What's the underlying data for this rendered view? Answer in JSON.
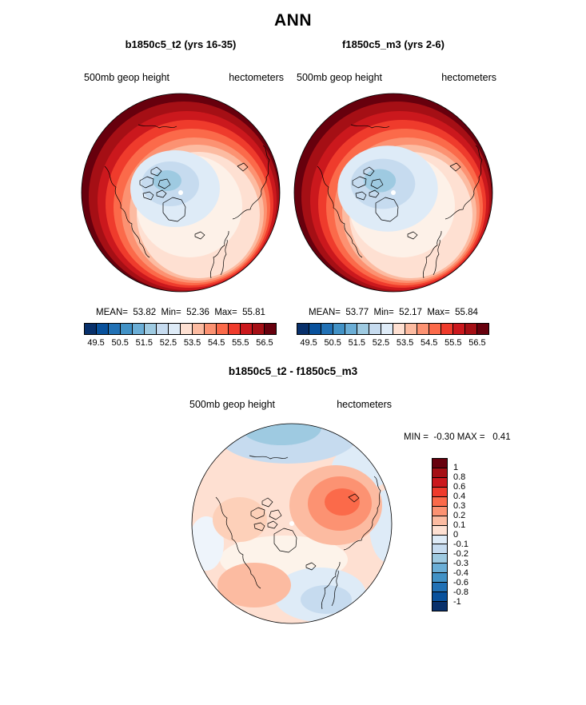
{
  "page_title": "ANN",
  "panels": [
    {
      "title": "b1850c5_t2 (yrs 16-35)",
      "field_label": "500mb geop height",
      "units_label": "hectometers",
      "stats_line": "MEAN=  53.82  Min=  52.36  Max=  55.81"
    },
    {
      "title": "f1850c5_m3 (yrs 2-6)",
      "field_label": "500mb geop height",
      "units_label": "hectometers",
      "stats_line": "MEAN=  53.77  Min=  52.17  Max=  55.84"
    }
  ],
  "diff_panel": {
    "title": "b1850c5_t2 - f1850c5_m3",
    "field_label": "500mb geop height",
    "units_label": "hectometers",
    "minmax_line": "MIN =  -0.30 MAX =   0.41"
  },
  "chart_data": [
    {
      "type": "heatmap",
      "chart": "polar_contour_map",
      "projection": "north polar stereographic",
      "title": "b1850c5_t2 (yrs 16-35)",
      "variable": "500mb geop height",
      "units": "hectometers",
      "season": "ANN",
      "stats": {
        "mean": 53.82,
        "min": 52.36,
        "max": 55.81
      },
      "contour_levels": [
        49,
        49.5,
        50,
        50.5,
        51,
        51.5,
        52,
        52.5,
        53,
        53.5,
        54,
        54.5,
        55,
        55.5,
        56,
        56.5,
        57
      ],
      "pattern": "values increase from ~52 hectometers (light blue) near the pole to ~56 (dark red) at the map edge",
      "colorbar": {
        "orientation": "horizontal",
        "tick_labels": [
          "49.5",
          "50.5",
          "51.5",
          "52.5",
          "53.5",
          "54.5",
          "55.5",
          "56.5"
        ],
        "n_colors": 16,
        "palette": [
          "#08306b",
          "#08519c",
          "#2171b5",
          "#4292c6",
          "#6baed6",
          "#9ecae1",
          "#c6dbef",
          "#deebf7",
          "#fee0d2",
          "#fcbba1",
          "#fc9272",
          "#fb6a4a",
          "#ef3b2c",
          "#cb181d",
          "#a50f15",
          "#67000d"
        ]
      }
    },
    {
      "type": "heatmap",
      "chart": "polar_contour_map",
      "projection": "north polar stereographic",
      "title": "f1850c5_m3 (yrs 2-6)",
      "variable": "500mb geop height",
      "units": "hectometers",
      "season": "ANN",
      "stats": {
        "mean": 53.77,
        "min": 52.17,
        "max": 55.84
      },
      "contour_levels": [
        49,
        49.5,
        50,
        50.5,
        51,
        51.5,
        52,
        52.5,
        53,
        53.5,
        54,
        54.5,
        55,
        55.5,
        56,
        56.5,
        57
      ],
      "pattern": "same as panel 1 with a slightly larger/deeper low (blue) region around the pole",
      "colorbar": {
        "orientation": "horizontal",
        "tick_labels": [
          "49.5",
          "50.5",
          "51.5",
          "52.5",
          "53.5",
          "54.5",
          "55.5",
          "56.5"
        ],
        "n_colors": 16,
        "palette": [
          "#08306b",
          "#08519c",
          "#2171b5",
          "#4292c6",
          "#6baed6",
          "#9ecae1",
          "#c6dbef",
          "#deebf7",
          "#fee0d2",
          "#fcbba1",
          "#fc9272",
          "#fb6a4a",
          "#ef3b2c",
          "#cb181d",
          "#a50f15",
          "#67000d"
        ]
      }
    },
    {
      "type": "heatmap",
      "chart": "polar_contour_map_difference",
      "projection": "north polar stereographic",
      "title": "b1850c5_t2 - f1850c5_m3",
      "variable": "500mb geop height",
      "units": "hectometers",
      "stats": {
        "min": -0.3,
        "max": 0.41
      },
      "contour_levels": [
        -1,
        -0.8,
        -0.6,
        -0.4,
        -0.3,
        -0.2,
        -0.1,
        0,
        0.1,
        0.2,
        0.3,
        0.4,
        0.6,
        0.8,
        1
      ],
      "pattern": "mostly weak positive differences (0 to +0.4, peach/orange, maximum orange blob east of the pole) with negative differences (to -0.3, blue) along the top edge and lower right",
      "colorbar": {
        "orientation": "vertical",
        "tick_labels": [
          "1",
          "0.8",
          "0.6",
          "0.4",
          "0.3",
          "0.2",
          "0.1",
          "0",
          "-0.1",
          "-0.2",
          "-0.3",
          "-0.4",
          "-0.6",
          "-0.8",
          "-1"
        ],
        "n_colors": 16,
        "palette": [
          "#67000d",
          "#a50f15",
          "#cb181d",
          "#ef3b2c",
          "#fb6a4a",
          "#fc9272",
          "#fcbba1",
          "#fee0d2",
          "#deebf7",
          "#c6dbef",
          "#9ecae1",
          "#6baed6",
          "#4292c6",
          "#2171b5",
          "#08519c",
          "#08306b"
        ]
      }
    }
  ]
}
